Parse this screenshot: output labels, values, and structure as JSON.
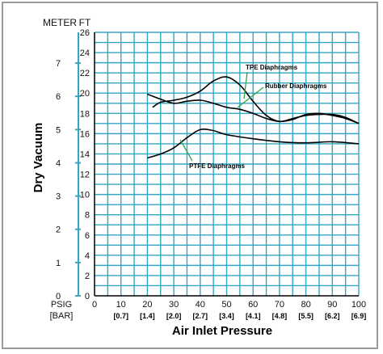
{
  "chart_data": {
    "type": "line",
    "ylabel": "Dry Vacuum",
    "xlabel": "Air Inlet Pressure",
    "unit_meter": "METER",
    "unit_ft": "FT",
    "unit_psig": "PSIG",
    "unit_bar": "[BAR]",
    "xlim": [
      0,
      100
    ],
    "ylim": [
      0,
      26
    ],
    "x_ticks": [
      "0",
      "10",
      "20",
      "30",
      "40",
      "50",
      "60",
      "70",
      "80",
      "90",
      "100"
    ],
    "bar_ticks": [
      "[0.7]",
      "[1.4]",
      "[2.0]",
      "[2.7]",
      "[3.4]",
      "[4.1]",
      "[4.8]",
      "[5.5]",
      "[6.2]",
      "[6.9]"
    ],
    "ft_ticks": [
      "0",
      "2",
      "4",
      "6",
      "8",
      "10",
      "12",
      "14",
      "16",
      "18",
      "20",
      "22",
      "24",
      "26"
    ],
    "meter_ticks": [
      "0",
      "1",
      "2",
      "3",
      "4",
      "5",
      "6",
      "7"
    ],
    "grid": true,
    "grid_color": "#33a6c4",
    "series": [
      {
        "name": "TPE Diaphragms",
        "x": [
          22,
          25,
          30,
          35,
          40,
          45,
          50,
          55,
          60,
          65,
          70,
          75,
          80,
          85,
          90,
          95,
          100
        ],
        "y": [
          18.6,
          19.1,
          19.3,
          19.6,
          20.2,
          21.2,
          21.6,
          20.8,
          19.2,
          17.8,
          17.2,
          17.5,
          17.8,
          17.9,
          17.9,
          17.6,
          17.0
        ]
      },
      {
        "name": "Rubber Diaphragms",
        "x": [
          20,
          25,
          30,
          35,
          40,
          45,
          50,
          55,
          60,
          65,
          70,
          75,
          80,
          85,
          90,
          95,
          100
        ],
        "y": [
          19.9,
          19.4,
          19.0,
          19.2,
          19.3,
          19.0,
          18.6,
          18.4,
          18.0,
          17.5,
          17.2,
          17.4,
          17.9,
          18.0,
          17.8,
          17.5,
          17.0
        ]
      },
      {
        "name": "PTFE Diaphragms",
        "x": [
          20,
          25,
          30,
          35,
          40,
          45,
          50,
          60,
          70,
          80,
          90,
          100
        ],
        "y": [
          13.6,
          14.0,
          14.6,
          15.6,
          16.4,
          16.3,
          15.9,
          15.5,
          15.2,
          15.1,
          15.2,
          15.0
        ]
      }
    ],
    "annotations": [
      {
        "text": "TPE Diaphragms",
        "series": 0
      },
      {
        "text": "Rubber Diaphragms",
        "series": 1
      },
      {
        "text": "PTFE Diaphragms",
        "series": 2
      }
    ]
  }
}
